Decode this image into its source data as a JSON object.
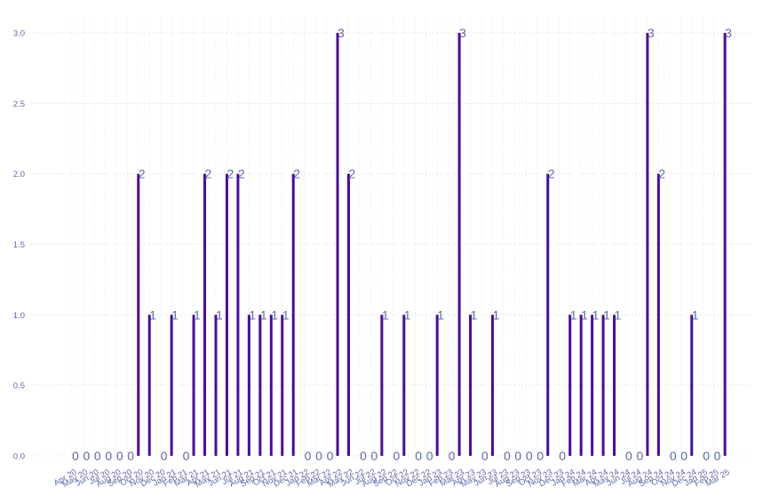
{
  "chart_data": {
    "type": "bar",
    "title": "",
    "xlabel": "",
    "ylabel": "",
    "ylim": [
      0,
      3.0
    ],
    "yticks": [
      "0.0",
      "0.5",
      "1.0",
      "1.5",
      "2.0",
      "2.5",
      "3.0"
    ],
    "grid": "on",
    "categories": [
      "Apr 20",
      "May 20",
      "Jun 20",
      "Jul 20",
      "Aug 20",
      "Sep 20",
      "Oct 20",
      "Nov 20",
      "Dec 20",
      "Jan 21",
      "Feb 21",
      "Mar 21",
      "Apr 21",
      "May 21",
      "Jun 21",
      "Jul 21",
      "Aug 21",
      "Sep 21",
      "Oct 21",
      "Nov 21",
      "Dec 21",
      "Jan 22",
      "Feb 22",
      "Mar 22",
      "Apr 22",
      "May 22",
      "Jun 22",
      "Jul 22",
      "Aug 22",
      "Sep 22",
      "Oct 22",
      "Nov 22",
      "Dec 22",
      "Jan 23",
      "Feb 23",
      "Mar 23",
      "Apr 23",
      "May 23",
      "Jun 23",
      "Jul 23",
      "Aug 23",
      "Sep 23",
      "Oct 23",
      "Nov 23",
      "Dec 23",
      "Jan 24",
      "Feb 24",
      "Mar 24",
      "Apr 24",
      "May 24",
      "Jun 24",
      "Jul 24",
      "Aug 24",
      "Sep 24",
      "Oct 24",
      "Nov 24",
      "Dec 24",
      "Jan 25",
      "Feb 25",
      "Mar 25"
    ],
    "values": [
      0,
      0,
      0,
      0,
      0,
      0,
      2,
      1,
      0,
      1,
      0,
      1,
      2,
      1,
      2,
      2,
      1,
      1,
      1,
      1,
      2,
      0,
      0,
      0,
      3,
      2,
      0,
      0,
      1,
      0,
      1,
      0,
      0,
      1,
      0,
      3,
      1,
      0,
      1,
      0,
      0,
      0,
      0,
      2,
      0,
      1,
      1,
      1,
      1,
      1,
      0,
      0,
      3,
      2,
      0,
      0,
      1,
      0,
      0,
      3
    ],
    "colors": {
      "bar": "#4b0aa0",
      "label": "#5b6aa8",
      "grid": "#e6e6e6"
    }
  }
}
